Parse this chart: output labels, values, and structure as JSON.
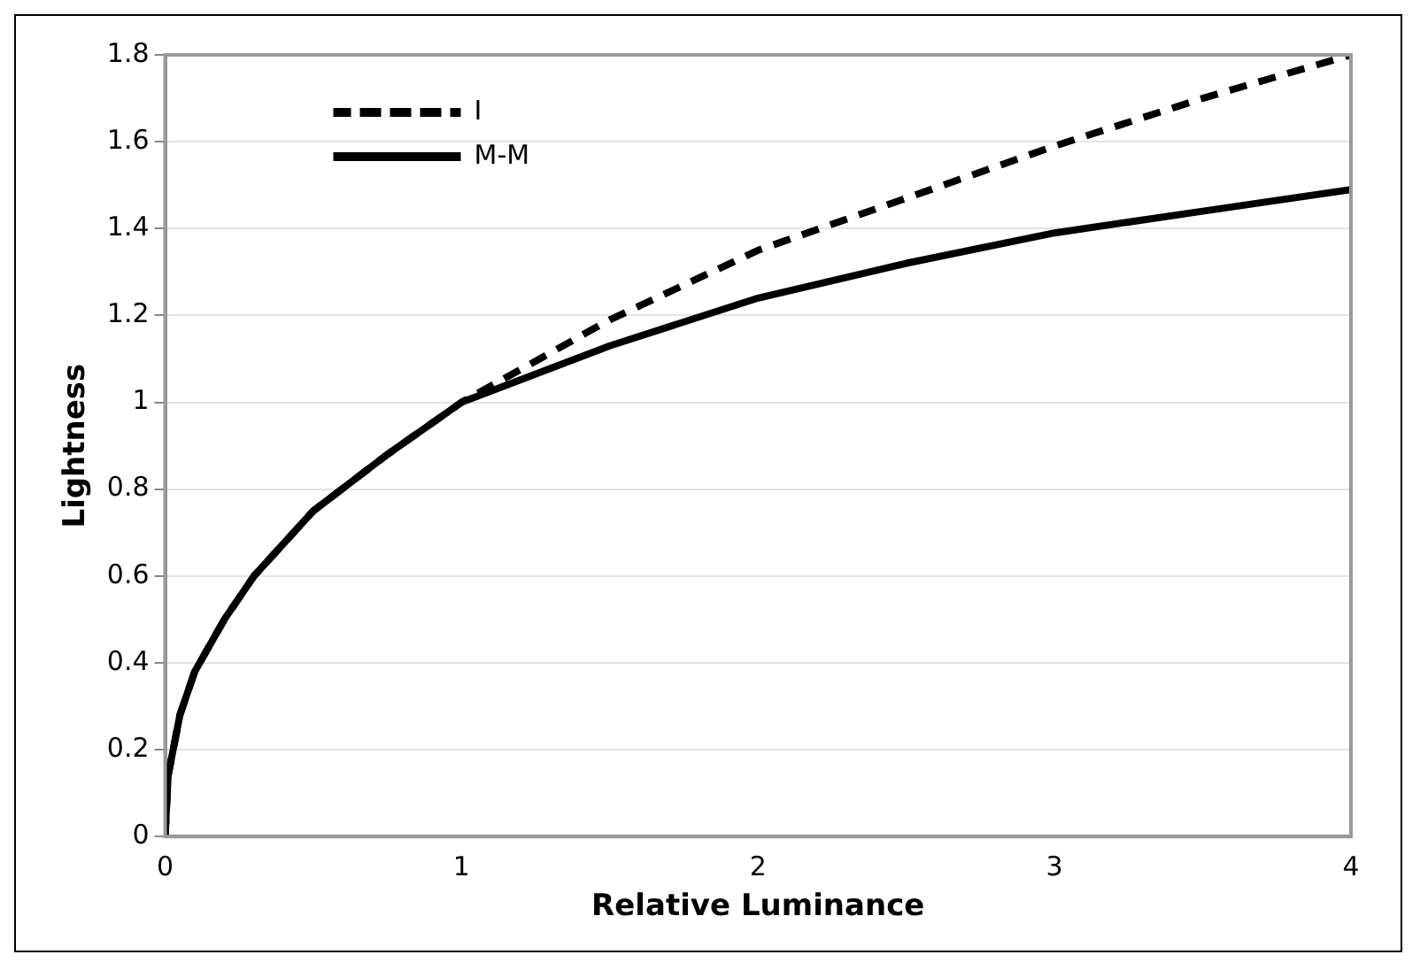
{
  "chart_data": {
    "type": "line",
    "xlabel": "Relative Luminance",
    "ylabel": "Lightness",
    "xlim": [
      0,
      4
    ],
    "xticks": [
      0,
      1,
      2,
      3,
      4
    ],
    "ylim": [
      0,
      1.8
    ],
    "yticks": [
      0,
      0.2,
      0.4,
      0.6,
      0.8,
      1,
      1.2,
      1.4,
      1.6,
      1.8
    ],
    "grid": "y",
    "legend": "top left",
    "marker": "none",
    "series": [
      {
        "name": "I",
        "color": "#000000",
        "line_style": "dashed",
        "x": [
          0,
          0.01,
          0.05,
          0.1,
          0.2,
          0.3,
          0.5,
          0.75,
          1,
          1.5,
          2,
          2.5,
          3,
          3.5,
          4
        ],
        "values": [
          0,
          0.14,
          0.28,
          0.38,
          0.5,
          0.6,
          0.75,
          0.88,
          1,
          1.19,
          1.35,
          1.47,
          1.59,
          1.7,
          1.8
        ]
      },
      {
        "name": "M-M",
        "color": "#000000",
        "line_style": "solid",
        "x": [
          0,
          0.01,
          0.05,
          0.1,
          0.2,
          0.3,
          0.5,
          0.75,
          1,
          1.5,
          2,
          2.5,
          3,
          3.5,
          4
        ],
        "values": [
          0,
          0.14,
          0.28,
          0.38,
          0.5,
          0.6,
          0.75,
          0.88,
          1,
          1.13,
          1.24,
          1.32,
          1.39,
          1.44,
          1.49
        ]
      }
    ]
  }
}
